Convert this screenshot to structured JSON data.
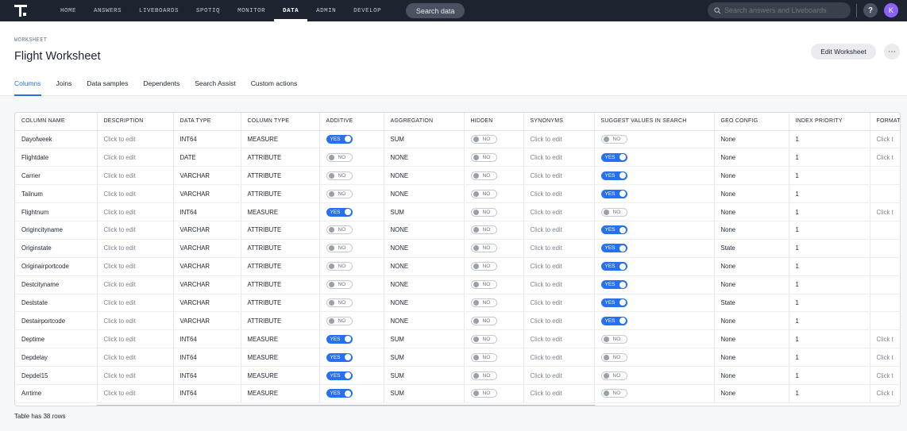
{
  "topnav": {
    "items": [
      "HOME",
      "ANSWERS",
      "LIVEBOARDS",
      "SPOTIQ",
      "MONITOR",
      "DATA",
      "ADMIN",
      "DEVELOP"
    ],
    "active": "DATA",
    "search_data_label": "Search data",
    "global_search_placeholder": "Search answers and Liveboards",
    "help_label": "?",
    "avatar_initial": "K"
  },
  "header": {
    "kicker": "WORKSHEET",
    "title": "Flight Worksheet",
    "edit_button": "Edit Worksheet",
    "more_label": "⋯",
    "tabs": [
      "Columns",
      "Joins",
      "Data samples",
      "Dependents",
      "Search Assist",
      "Custom actions"
    ],
    "active_tab": "Columns"
  },
  "table": {
    "columns": [
      "COLUMN NAME",
      "DESCRIPTION",
      "DATA TYPE",
      "COLUMN TYPE",
      "ADDITIVE",
      "AGGREGATION",
      "HIDDEN",
      "SYNONYMS",
      "SUGGEST VALUES IN SEARCH",
      "GEO CONFIG",
      "INDEX PRIORITY",
      "FORMAT"
    ],
    "toggle_on_label": "YES",
    "toggle_off_label": "NO",
    "rows": [
      {
        "name": "Dayofweek",
        "description": "Click to edit",
        "data_type": "INT64",
        "column_type": "MEASURE",
        "additive": true,
        "aggregation": "SUM",
        "hidden": false,
        "synonyms": "Click to edit",
        "suggest": false,
        "geo": "None",
        "priority": "1",
        "format": "Click t"
      },
      {
        "name": "Flightdate",
        "description": "Click to edit",
        "data_type": "DATE",
        "column_type": "ATTRIBUTE",
        "additive": false,
        "aggregation": "NONE",
        "hidden": false,
        "synonyms": "Click to edit",
        "suggest": true,
        "geo": "None",
        "priority": "1",
        "format": "Click t"
      },
      {
        "name": "Carrier",
        "description": "Click to edit",
        "data_type": "VARCHAR",
        "column_type": "ATTRIBUTE",
        "additive": false,
        "aggregation": "NONE",
        "hidden": false,
        "synonyms": "Click to edit",
        "suggest": true,
        "geo": "None",
        "priority": "1",
        "format": ""
      },
      {
        "name": "Tailnum",
        "description": "Click to edit",
        "data_type": "VARCHAR",
        "column_type": "ATTRIBUTE",
        "additive": false,
        "aggregation": "NONE",
        "hidden": false,
        "synonyms": "Click to edit",
        "suggest": true,
        "geo": "None",
        "priority": "1",
        "format": ""
      },
      {
        "name": "Flightnum",
        "description": "Click to edit",
        "data_type": "INT64",
        "column_type": "MEASURE",
        "additive": true,
        "aggregation": "SUM",
        "hidden": false,
        "synonyms": "Click to edit",
        "suggest": false,
        "geo": "None",
        "priority": "1",
        "format": "Click t"
      },
      {
        "name": "Origincityname",
        "description": "Click to edit",
        "data_type": "VARCHAR",
        "column_type": "ATTRIBUTE",
        "additive": false,
        "aggregation": "NONE",
        "hidden": false,
        "synonyms": "Click to edit",
        "suggest": true,
        "geo": "None",
        "priority": "1",
        "format": ""
      },
      {
        "name": "Originstate",
        "description": "Click to edit",
        "data_type": "VARCHAR",
        "column_type": "ATTRIBUTE",
        "additive": false,
        "aggregation": "NONE",
        "hidden": false,
        "synonyms": "Click to edit",
        "suggest": true,
        "geo": "State",
        "priority": "1",
        "format": ""
      },
      {
        "name": "Originairportcode",
        "description": "Click to edit",
        "data_type": "VARCHAR",
        "column_type": "ATTRIBUTE",
        "additive": false,
        "aggregation": "NONE",
        "hidden": false,
        "synonyms": "Click to edit",
        "suggest": true,
        "geo": "None",
        "priority": "1",
        "format": ""
      },
      {
        "name": "Destcityname",
        "description": "Click to edit",
        "data_type": "VARCHAR",
        "column_type": "ATTRIBUTE",
        "additive": false,
        "aggregation": "NONE",
        "hidden": false,
        "synonyms": "Click to edit",
        "suggest": true,
        "geo": "None",
        "priority": "1",
        "format": ""
      },
      {
        "name": "Deststate",
        "description": "Click to edit",
        "data_type": "VARCHAR",
        "column_type": "ATTRIBUTE",
        "additive": false,
        "aggregation": "NONE",
        "hidden": false,
        "synonyms": "Click to edit",
        "suggest": true,
        "geo": "State",
        "priority": "1",
        "format": ""
      },
      {
        "name": "Destairportcode",
        "description": "Click to edit",
        "data_type": "VARCHAR",
        "column_type": "ATTRIBUTE",
        "additive": false,
        "aggregation": "NONE",
        "hidden": false,
        "synonyms": "Click to edit",
        "suggest": true,
        "geo": "None",
        "priority": "1",
        "format": ""
      },
      {
        "name": "Deptime",
        "description": "Click to edit",
        "data_type": "INT64",
        "column_type": "MEASURE",
        "additive": true,
        "aggregation": "SUM",
        "hidden": false,
        "synonyms": "Click to edit",
        "suggest": false,
        "geo": "None",
        "priority": "1",
        "format": "Click t"
      },
      {
        "name": "Depdelay",
        "description": "Click to edit",
        "data_type": "INT64",
        "column_type": "MEASURE",
        "additive": true,
        "aggregation": "SUM",
        "hidden": false,
        "synonyms": "Click to edit",
        "suggest": false,
        "geo": "None",
        "priority": "1",
        "format": "Click t"
      },
      {
        "name": "Depdel15",
        "description": "Click to edit",
        "data_type": "INT64",
        "column_type": "MEASURE",
        "additive": true,
        "aggregation": "SUM",
        "hidden": false,
        "synonyms": "Click to edit",
        "suggest": false,
        "geo": "None",
        "priority": "1",
        "format": "Click t"
      },
      {
        "name": "Arrtime",
        "description": "Click to edit",
        "data_type": "INT64",
        "column_type": "MEASURE",
        "additive": true,
        "aggregation": "SUM",
        "hidden": false,
        "synonyms": "Click to edit",
        "suggest": false,
        "geo": "None",
        "priority": "1",
        "format": "Click t"
      }
    ]
  },
  "footer": {
    "row_count_text": "Table has 38 rows"
  },
  "colors": {
    "accent": "#2770ef",
    "topbar": "#1d232f",
    "avatar": "#8c62f5"
  }
}
